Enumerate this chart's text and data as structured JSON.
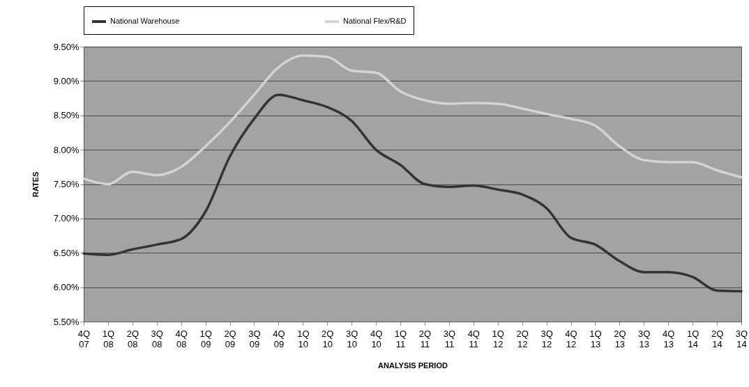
{
  "chart_data": {
    "type": "line",
    "xlabel": "ANALYSIS PERIOD",
    "ylabel": "RATES",
    "categories": [
      "4Q 07",
      "1Q 08",
      "2Q 08",
      "3Q 08",
      "4Q 08",
      "1Q 09",
      "2Q 09",
      "3Q 09",
      "4Q 09",
      "1Q 10",
      "2Q 10",
      "3Q 10",
      "4Q 10",
      "1Q 11",
      "2Q 11",
      "3Q 11",
      "4Q 11",
      "1Q 12",
      "2Q 12",
      "3Q 12",
      "4Q 12",
      "1Q 13",
      "2Q 13",
      "3Q 13",
      "4Q 13",
      "1Q 14",
      "2Q 14",
      "3Q 14"
    ],
    "series": [
      {
        "name": "National Warehouse",
        "color": "#333333",
        "values": [
          6.49,
          6.47,
          6.55,
          6.62,
          6.7,
          7.1,
          7.9,
          8.45,
          8.8,
          8.72,
          8.62,
          8.42,
          8.0,
          7.78,
          7.5,
          7.46,
          7.48,
          7.42,
          7.35,
          7.15,
          6.72,
          6.62,
          6.38,
          6.22,
          6.22,
          6.15,
          5.95,
          5.94
        ]
      },
      {
        "name": "National Flex/R&D",
        "color": "#d4d4d4",
        "values": [
          7.58,
          7.5,
          7.68,
          7.63,
          7.75,
          8.05,
          8.4,
          8.8,
          9.2,
          9.37,
          9.35,
          9.15,
          9.12,
          8.85,
          8.72,
          8.67,
          8.68,
          8.67,
          8.6,
          8.52,
          8.45,
          8.35,
          8.05,
          7.85,
          7.82,
          7.82,
          7.7,
          7.6
        ]
      }
    ],
    "ylim": [
      5.5,
      9.5
    ],
    "yticks": [
      {
        "value": 5.5,
        "label": "5.50%"
      },
      {
        "value": 6,
        "label": "6.00%"
      },
      {
        "value": 6.5,
        "label": "6.50%"
      },
      {
        "value": 7,
        "label": "7.00%"
      },
      {
        "value": 7.5,
        "label": "7.50%"
      },
      {
        "value": 8,
        "label": "8.00%"
      },
      {
        "value": 8.5,
        "label": "8.50%"
      },
      {
        "value": 9,
        "label": "9.00%"
      },
      {
        "value": 9.5,
        "label": "9.50%"
      }
    ],
    "grid": "y",
    "legend": "top",
    "marker": "none",
    "line_style": "solid"
  }
}
